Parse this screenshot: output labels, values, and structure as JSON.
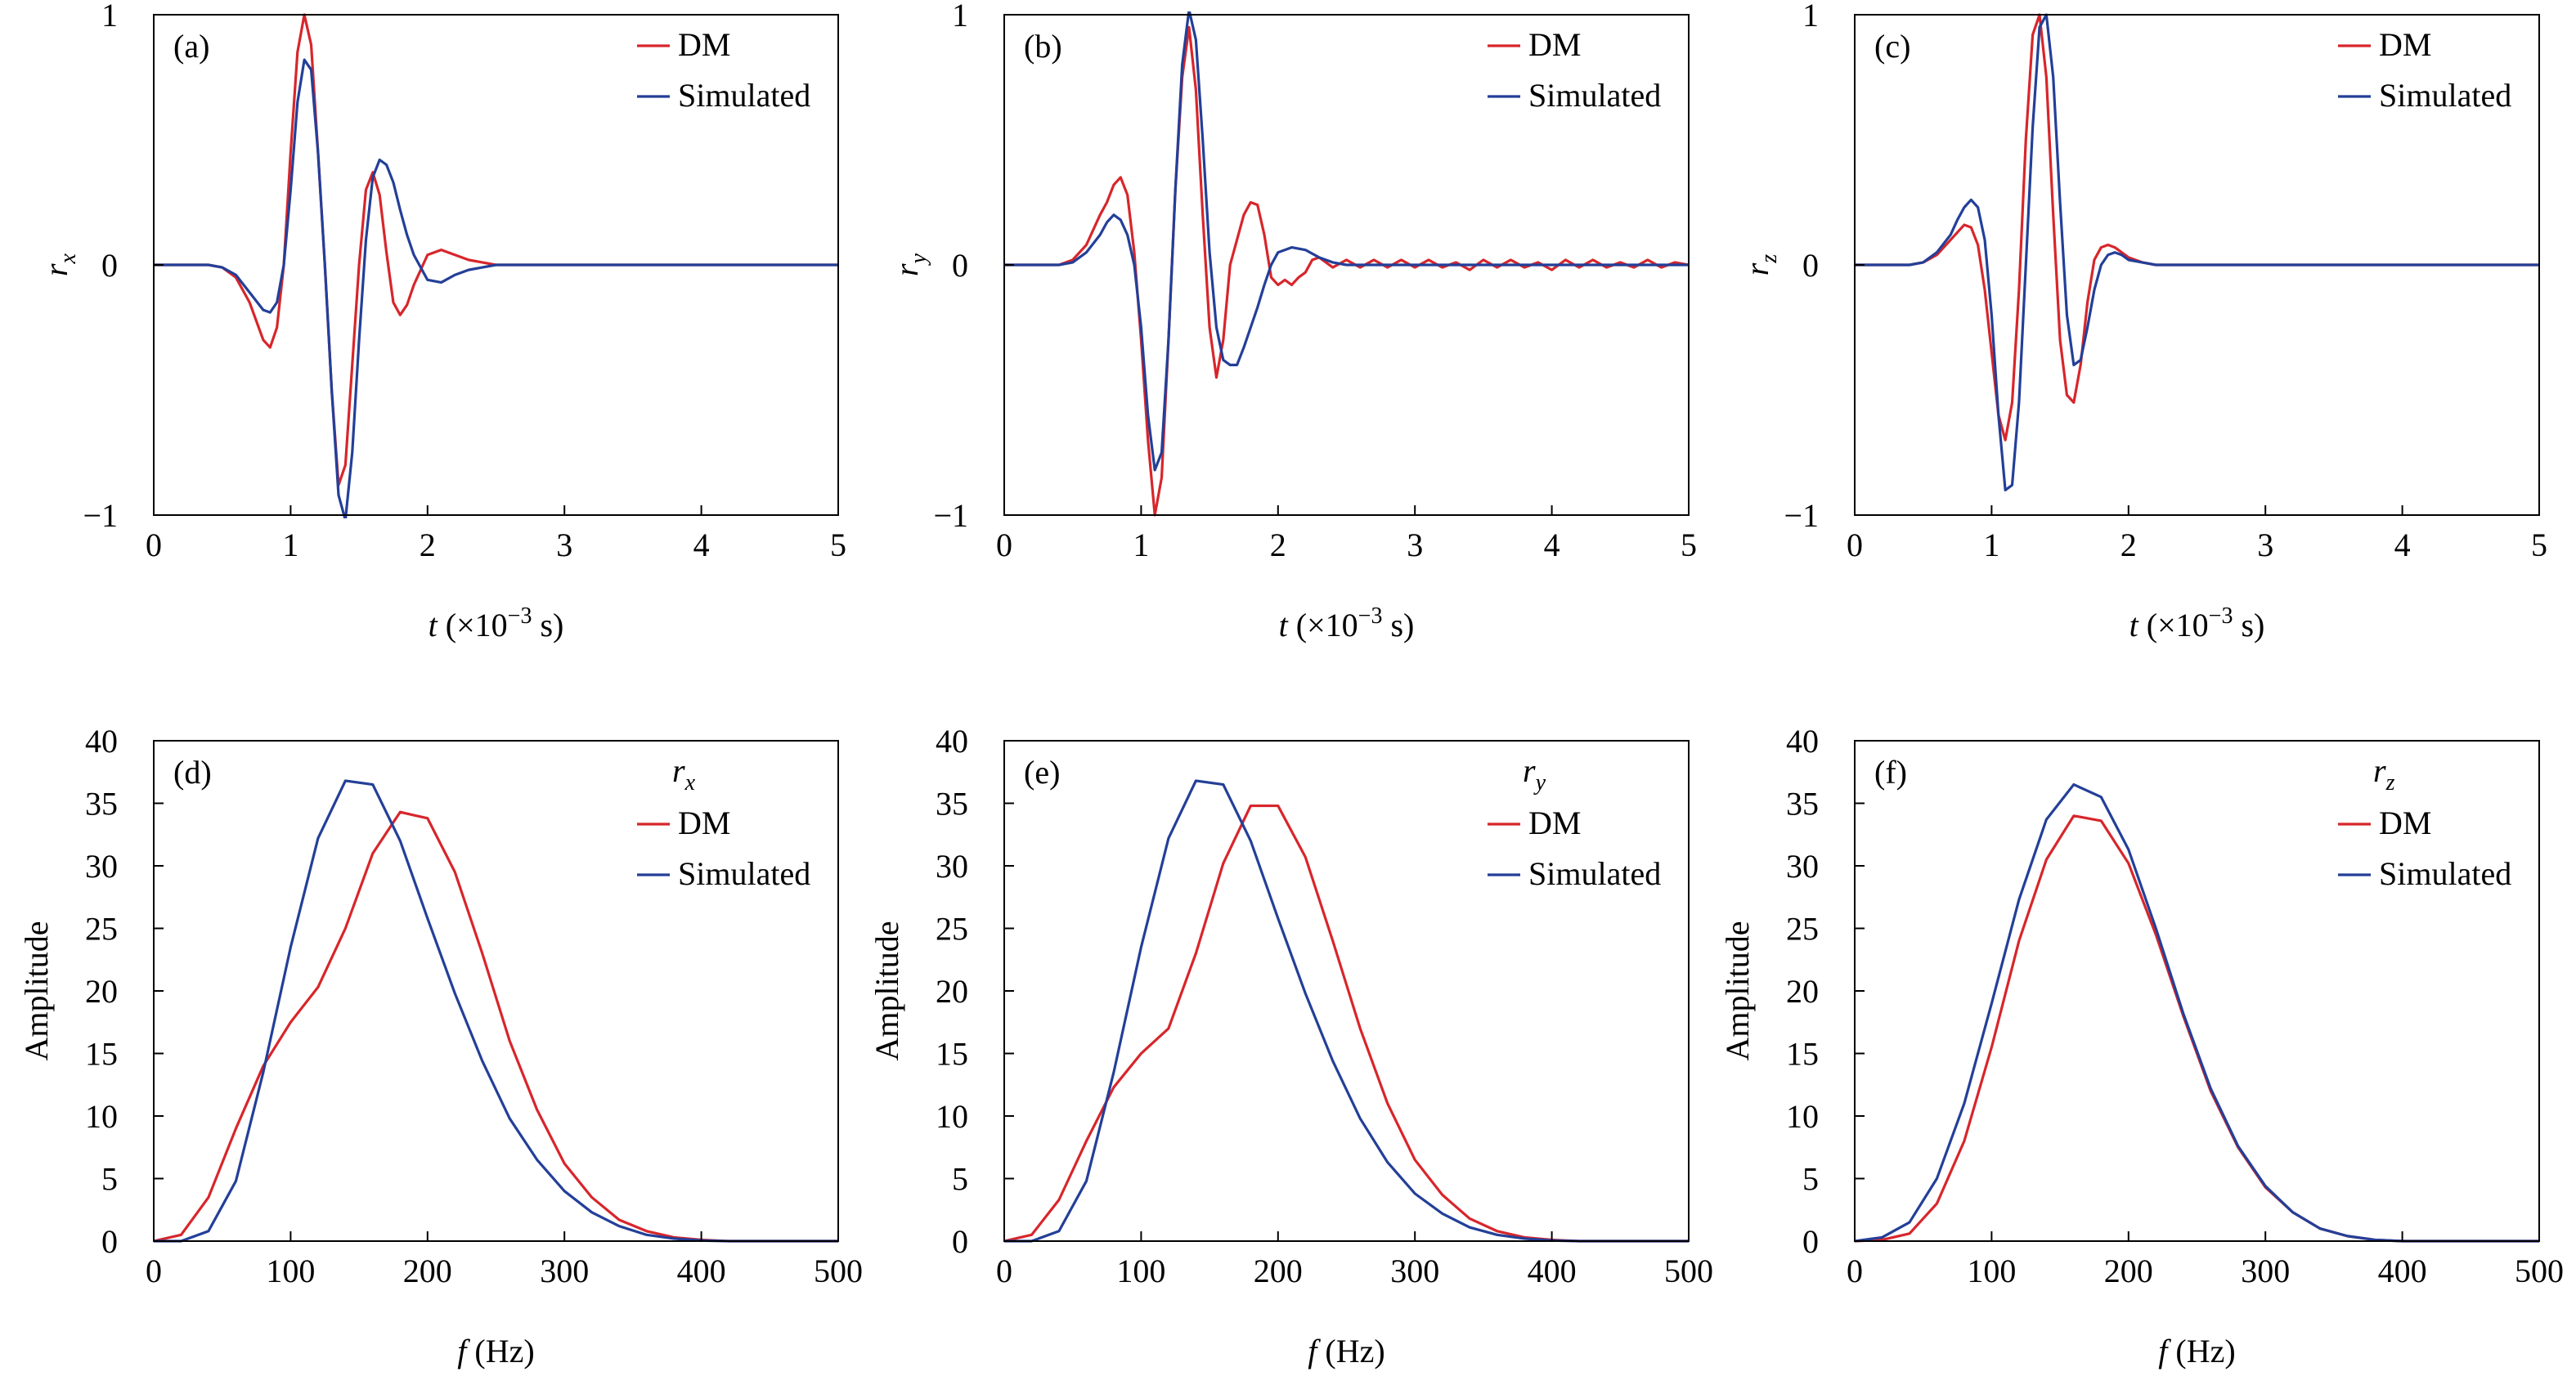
{
  "colors": {
    "dm": "#d7262b",
    "simulated": "#233f98"
  },
  "chart_data": [
    {
      "panel": "(a)",
      "type": "line",
      "xlabel": "t (×10⁻³ s)",
      "ylabel": "rx",
      "xlim": [
        0,
        5
      ],
      "ylim": [
        -1,
        1
      ],
      "xticks": [
        "0",
        "1",
        "2",
        "3",
        "4",
        "5"
      ],
      "yticks": [
        "−1",
        "0",
        "1"
      ],
      "legend_title": "",
      "series": [
        {
          "name": "DM",
          "x": [
            0,
            0.4,
            0.5,
            0.6,
            0.7,
            0.8,
            0.85,
            0.9,
            0.95,
            1.0,
            1.05,
            1.1,
            1.15,
            1.2,
            1.25,
            1.3,
            1.35,
            1.4,
            1.45,
            1.5,
            1.55,
            1.6,
            1.65,
            1.7,
            1.75,
            1.8,
            1.85,
            1.9,
            2.0,
            2.1,
            2.2,
            2.3,
            2.4,
            2.5,
            3,
            4,
            5
          ],
          "y": [
            0,
            0,
            -0.01,
            -0.05,
            -0.15,
            -0.3,
            -0.33,
            -0.25,
            0,
            0.45,
            0.85,
            1.0,
            0.88,
            0.45,
            0,
            -0.5,
            -0.88,
            -0.8,
            -0.4,
            0,
            0.3,
            0.37,
            0.28,
            0.05,
            -0.15,
            -0.2,
            -0.16,
            -0.08,
            0.04,
            0.06,
            0.04,
            0.02,
            0.01,
            0,
            0,
            0,
            0
          ]
        },
        {
          "name": "Simulated",
          "x": [
            0,
            0.4,
            0.5,
            0.6,
            0.7,
            0.8,
            0.85,
            0.9,
            0.95,
            1.0,
            1.05,
            1.1,
            1.15,
            1.2,
            1.25,
            1.3,
            1.35,
            1.4,
            1.45,
            1.5,
            1.55,
            1.6,
            1.65,
            1.7,
            1.75,
            1.8,
            1.85,
            1.9,
            2.0,
            2.1,
            2.2,
            2.3,
            2.4,
            2.5,
            3,
            4,
            5
          ],
          "y": [
            0,
            0,
            -0.01,
            -0.04,
            -0.11,
            -0.18,
            -0.19,
            -0.15,
            0,
            0.3,
            0.65,
            0.82,
            0.78,
            0.45,
            0,
            -0.5,
            -0.92,
            -1.02,
            -0.75,
            -0.3,
            0.1,
            0.35,
            0.42,
            0.4,
            0.33,
            0.22,
            0.12,
            0.04,
            -0.06,
            -0.07,
            -0.04,
            -0.02,
            -0.01,
            0,
            0,
            0,
            0
          ]
        }
      ]
    },
    {
      "panel": "(b)",
      "type": "line",
      "xlabel": "t (×10⁻³ s)",
      "ylabel": "ry",
      "xlim": [
        0,
        5
      ],
      "ylim": [
        -1,
        1
      ],
      "xticks": [
        "0",
        "1",
        "2",
        "3",
        "4",
        "5"
      ],
      "yticks": [
        "−1",
        "0",
        "1"
      ],
      "legend_title": "",
      "series": [
        {
          "name": "DM",
          "x": [
            0,
            0.4,
            0.5,
            0.6,
            0.7,
            0.75,
            0.8,
            0.85,
            0.9,
            0.95,
            1.0,
            1.05,
            1.1,
            1.15,
            1.2,
            1.25,
            1.3,
            1.35,
            1.4,
            1.45,
            1.5,
            1.55,
            1.6,
            1.65,
            1.7,
            1.75,
            1.8,
            1.85,
            1.9,
            1.95,
            2.0,
            2.05,
            2.1,
            2.15,
            2.2,
            2.25,
            2.3,
            2.4,
            2.5,
            2.6,
            2.7,
            2.8,
            2.9,
            3.0,
            3.1,
            3.2,
            3.3,
            3.4,
            3.5,
            3.6,
            3.7,
            3.8,
            3.9,
            4.0,
            4.1,
            4.2,
            4.3,
            4.4,
            4.5,
            4.6,
            4.7,
            4.8,
            4.9,
            5.0
          ],
          "y": [
            0,
            0,
            0.02,
            0.08,
            0.2,
            0.25,
            0.32,
            0.35,
            0.28,
            0.05,
            -0.3,
            -0.7,
            -1.0,
            -0.85,
            -0.3,
            0.3,
            0.75,
            0.95,
            0.7,
            0.2,
            -0.25,
            -0.45,
            -0.3,
            0,
            0.1,
            0.2,
            0.25,
            0.24,
            0.12,
            -0.05,
            -0.08,
            -0.06,
            -0.08,
            -0.05,
            -0.03,
            0.02,
            0.03,
            -0.01,
            0.02,
            -0.01,
            0.02,
            -0.01,
            0.02,
            -0.01,
            0.02,
            -0.01,
            0.01,
            -0.02,
            0.02,
            -0.01,
            0.02,
            -0.01,
            0.01,
            -0.02,
            0.02,
            -0.01,
            0.02,
            -0.01,
            0.01,
            -0.01,
            0.02,
            -0.01,
            0.01,
            0
          ]
        },
        {
          "name": "Simulated",
          "x": [
            0,
            0.4,
            0.5,
            0.6,
            0.7,
            0.75,
            0.8,
            0.85,
            0.9,
            0.95,
            1.0,
            1.05,
            1.1,
            1.15,
            1.2,
            1.25,
            1.3,
            1.35,
            1.4,
            1.45,
            1.5,
            1.55,
            1.6,
            1.65,
            1.7,
            1.75,
            1.8,
            1.85,
            1.9,
            1.95,
            2.0,
            2.1,
            2.2,
            2.3,
            2.4,
            2.5,
            3,
            4,
            5
          ],
          "y": [
            0,
            0,
            0.01,
            0.05,
            0.12,
            0.17,
            0.2,
            0.18,
            0.12,
            0.0,
            -0.25,
            -0.6,
            -0.82,
            -0.75,
            -0.3,
            0.3,
            0.8,
            1.02,
            0.9,
            0.5,
            0.05,
            -0.25,
            -0.38,
            -0.4,
            -0.4,
            -0.33,
            -0.25,
            -0.17,
            -0.08,
            0.0,
            0.05,
            0.07,
            0.06,
            0.03,
            0.01,
            0.0,
            0,
            0,
            0
          ]
        }
      ]
    },
    {
      "panel": "(c)",
      "type": "line",
      "xlabel": "t (×10⁻³ s)",
      "ylabel": "rz",
      "xlim": [
        0,
        5
      ],
      "ylim": [
        -1,
        1
      ],
      "xticks": [
        "0",
        "1",
        "2",
        "3",
        "4",
        "5"
      ],
      "yticks": [
        "−1",
        "0",
        "1"
      ],
      "legend_title": "",
      "series": [
        {
          "name": "DM",
          "x": [
            0,
            0.4,
            0.5,
            0.6,
            0.7,
            0.75,
            0.8,
            0.85,
            0.9,
            0.95,
            1.0,
            1.05,
            1.1,
            1.15,
            1.2,
            1.25,
            1.3,
            1.35,
            1.4,
            1.45,
            1.5,
            1.55,
            1.6,
            1.65,
            1.7,
            1.75,
            1.8,
            1.85,
            1.9,
            1.95,
            2.0,
            2.1,
            2.2,
            2.3,
            2.4,
            3,
            4,
            5
          ],
          "y": [
            0,
            0,
            0.01,
            0.04,
            0.1,
            0.13,
            0.16,
            0.15,
            0.08,
            -0.1,
            -0.35,
            -0.6,
            -0.7,
            -0.55,
            -0.1,
            0.5,
            0.92,
            1.0,
            0.75,
            0.2,
            -0.3,
            -0.52,
            -0.55,
            -0.4,
            -0.15,
            0.02,
            0.07,
            0.08,
            0.07,
            0.05,
            0.03,
            0.01,
            0,
            0,
            0,
            0,
            0,
            0
          ]
        },
        {
          "name": "Simulated",
          "x": [
            0,
            0.4,
            0.5,
            0.6,
            0.7,
            0.75,
            0.8,
            0.85,
            0.9,
            0.95,
            1.0,
            1.05,
            1.1,
            1.15,
            1.2,
            1.25,
            1.3,
            1.35,
            1.4,
            1.45,
            1.5,
            1.55,
            1.6,
            1.65,
            1.7,
            1.75,
            1.8,
            1.85,
            1.9,
            1.95,
            2.0,
            2.1,
            2.2,
            2.3,
            2.4,
            3,
            4,
            5
          ],
          "y": [
            0,
            0,
            0.01,
            0.05,
            0.12,
            0.18,
            0.23,
            0.26,
            0.23,
            0.1,
            -0.2,
            -0.6,
            -0.9,
            -0.88,
            -0.55,
            0.0,
            0.55,
            0.95,
            1.0,
            0.75,
            0.25,
            -0.2,
            -0.4,
            -0.38,
            -0.25,
            -0.1,
            0.0,
            0.04,
            0.05,
            0.04,
            0.02,
            0.01,
            0,
            0,
            0,
            0,
            0,
            0
          ]
        }
      ]
    },
    {
      "panel": "(d)",
      "type": "line",
      "xlabel": "f (Hz)",
      "ylabel": "Amplitude",
      "xlim": [
        0,
        500
      ],
      "ylim": [
        0,
        40
      ],
      "xticks": [
        "0",
        "100",
        "200",
        "300",
        "400",
        "500"
      ],
      "yticks": [
        "0",
        "5",
        "10",
        "15",
        "20",
        "25",
        "30",
        "35",
        "40"
      ],
      "legend_title": "rx",
      "series": [
        {
          "name": "DM",
          "x": [
            0,
            20,
            40,
            60,
            80,
            100,
            120,
            140,
            160,
            180,
            200,
            220,
            240,
            260,
            280,
            300,
            320,
            340,
            360,
            380,
            400,
            420,
            440,
            460,
            480,
            500
          ],
          "y": [
            0,
            0.5,
            3.5,
            9,
            14,
            17.5,
            20.3,
            25,
            31,
            34.3,
            33.8,
            29.5,
            23,
            16,
            10.5,
            6.2,
            3.5,
            1.7,
            0.8,
            0.3,
            0.1,
            0,
            0,
            0,
            0,
            0
          ]
        },
        {
          "name": "Simulated",
          "x": [
            0,
            20,
            40,
            60,
            80,
            100,
            120,
            140,
            160,
            180,
            200,
            220,
            240,
            260,
            280,
            300,
            320,
            340,
            360,
            380,
            400,
            420,
            440,
            460,
            480,
            500
          ],
          "y": [
            0,
            0,
            0.8,
            4.8,
            13.5,
            23.5,
            32.2,
            36.8,
            36.5,
            32,
            25.8,
            19.8,
            14.4,
            9.8,
            6.5,
            4,
            2.3,
            1.2,
            0.5,
            0.2,
            0.05,
            0,
            0,
            0,
            0,
            0
          ]
        }
      ]
    },
    {
      "panel": "(e)",
      "type": "line",
      "xlabel": "f (Hz)",
      "ylabel": "Amplitude",
      "xlim": [
        0,
        500
      ],
      "ylim": [
        0,
        40
      ],
      "xticks": [
        "0",
        "100",
        "200",
        "300",
        "400",
        "500"
      ],
      "yticks": [
        "0",
        "5",
        "10",
        "15",
        "20",
        "25",
        "30",
        "35",
        "40"
      ],
      "legend_title": "ry",
      "series": [
        {
          "name": "DM",
          "x": [
            0,
            20,
            40,
            60,
            80,
            100,
            120,
            140,
            160,
            180,
            200,
            220,
            240,
            260,
            280,
            300,
            320,
            340,
            360,
            380,
            400,
            420,
            440,
            460,
            480,
            500
          ],
          "y": [
            0,
            0.5,
            3.3,
            8,
            12.3,
            15,
            17,
            23,
            30.2,
            34.8,
            34.8,
            30.7,
            24,
            17,
            11,
            6.5,
            3.7,
            1.8,
            0.8,
            0.3,
            0.1,
            0,
            0,
            0,
            0,
            0
          ]
        },
        {
          "name": "Simulated",
          "x": [
            0,
            20,
            40,
            60,
            80,
            100,
            120,
            140,
            160,
            180,
            200,
            220,
            240,
            260,
            280,
            300,
            320,
            340,
            360,
            380,
            400,
            420,
            440,
            460,
            480,
            500
          ],
          "y": [
            0,
            0,
            0.8,
            4.8,
            13.5,
            23.5,
            32.2,
            36.8,
            36.5,
            32,
            25.8,
            19.8,
            14.4,
            9.8,
            6.3,
            3.8,
            2.2,
            1.1,
            0.5,
            0.2,
            0.05,
            0,
            0,
            0,
            0,
            0
          ]
        }
      ]
    },
    {
      "panel": "(f)",
      "type": "line",
      "xlabel": "f (Hz)",
      "ylabel": "Amplitude",
      "xlim": [
        0,
        500
      ],
      "ylim": [
        0,
        40
      ],
      "xticks": [
        "0",
        "100",
        "200",
        "300",
        "400",
        "500"
      ],
      "yticks": [
        "0",
        "5",
        "10",
        "15",
        "20",
        "25",
        "30",
        "35",
        "40"
      ],
      "legend_title": "rz",
      "series": [
        {
          "name": "DM",
          "x": [
            0,
            20,
            40,
            60,
            80,
            100,
            120,
            140,
            160,
            180,
            200,
            220,
            240,
            260,
            280,
            300,
            320,
            340,
            360,
            380,
            400,
            420,
            440,
            460,
            480,
            500
          ],
          "y": [
            0,
            0.1,
            0.6,
            3,
            8,
            15.5,
            24,
            30.5,
            34,
            33.6,
            30.2,
            24.5,
            18,
            12,
            7.5,
            4.3,
            2.3,
            1,
            0.4,
            0.1,
            0,
            0,
            0,
            0,
            0,
            0
          ]
        },
        {
          "name": "Simulated",
          "x": [
            0,
            20,
            40,
            60,
            80,
            100,
            120,
            140,
            160,
            180,
            200,
            220,
            240,
            260,
            280,
            300,
            320,
            340,
            360,
            380,
            400,
            420,
            440,
            460,
            480,
            500
          ],
          "y": [
            0,
            0.3,
            1.5,
            5,
            11,
            19,
            27.3,
            33.7,
            36.5,
            35.5,
            31.3,
            25,
            18.2,
            12.2,
            7.6,
            4.4,
            2.3,
            1,
            0.4,
            0.1,
            0,
            0,
            0,
            0,
            0,
            0
          ]
        }
      ]
    }
  ]
}
